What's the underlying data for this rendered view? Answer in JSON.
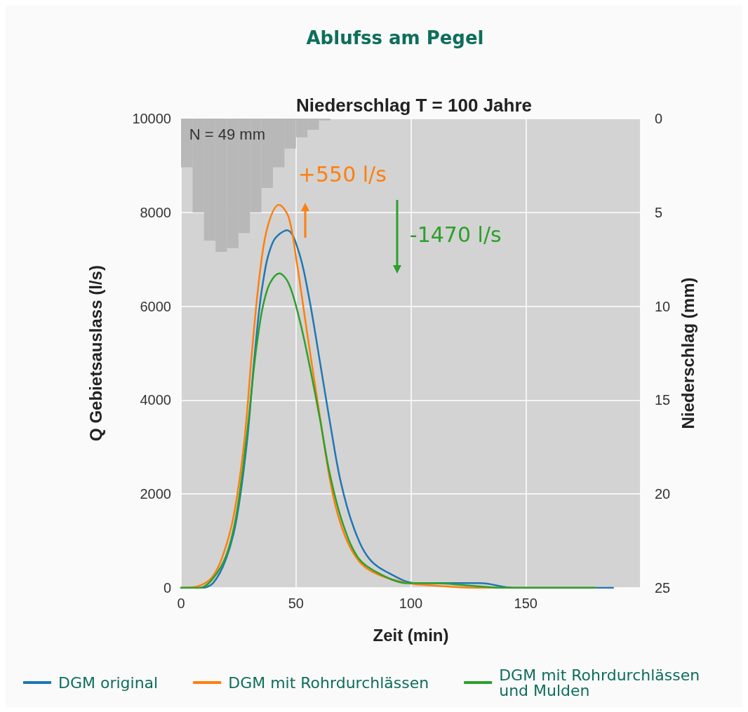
{
  "chart_data": {
    "type": "line",
    "title": "Ablufss am Pegel",
    "subtitle": "Niederschlag T = 100 Jahre",
    "xlabel": "Zeit (min)",
    "ylabel": "Q Gebietsauslass (l/s)",
    "y2label": "Niederschlag (mm)",
    "xlim": [
      0,
      200
    ],
    "xticks": [
      0,
      50,
      100,
      150
    ],
    "ylim": [
      0,
      10000
    ],
    "yticks": [
      0,
      2000,
      4000,
      6000,
      8000,
      10000
    ],
    "y2lim": [
      25,
      0
    ],
    "y2ticks": [
      0,
      5,
      10,
      15,
      20,
      25
    ],
    "grid": true,
    "legend": "bottom",
    "line_style": "solid",
    "marker": "none",
    "annotations": [
      "+550 l/s",
      "-1470 l/s",
      "N = 49 mm"
    ],
    "series": [
      {
        "type": "bar",
        "axis": "y2",
        "color": "#b8b8b8",
        "x": [
          2.5,
          7.5,
          12.5,
          17.5,
          22.5,
          27.5,
          32.5,
          37.5,
          42.5,
          47.5,
          52.5,
          57.5,
          62.5
        ],
        "values": [
          2.6,
          5.0,
          6.5,
          7.1,
          6.9,
          6.1,
          5.0,
          3.7,
          2.6,
          1.6,
          1.0,
          0.6,
          0.1
        ]
      },
      {
        "name": "DGM original",
        "color": "#1f77b4",
        "x": [
          0,
          8.3,
          13.9,
          19.6,
          24.1,
          28.7,
          32,
          35.4,
          40,
          46.2,
          51.3,
          55.8,
          60.4,
          64.9,
          69.4,
          75.1,
          81.9,
          91,
          102.3,
          110,
          120,
          130,
          145,
          160,
          188
        ],
        "values": [
          0,
          0,
          100,
          620,
          1450,
          3110,
          4940,
          6430,
          7370,
          7620,
          7150,
          6160,
          4830,
          3500,
          2280,
          1290,
          620,
          300,
          100,
          100,
          100,
          100,
          0,
          0,
          0
        ]
      },
      {
        "name": "DGM mit Rohrdurchlässen",
        "color": "#ff7f0e",
        "x": [
          0,
          8.3,
          13.9,
          18.5,
          23,
          27.5,
          30.9,
          34.3,
          37.7,
          42.6,
          46.8,
          50.2,
          54.7,
          60.4,
          66,
          71.7,
          78.5,
          87.5,
          98.8,
          110,
          130,
          150,
          180
        ],
        "values": [
          0,
          50,
          250,
          730,
          1560,
          3110,
          5050,
          6710,
          7700,
          8160,
          7900,
          6990,
          5490,
          3660,
          2000,
          1060,
          510,
          250,
          100,
          50,
          0,
          0,
          0
        ]
      },
      {
        "name": "DGM mit Rohrdurchlässen und Mulden",
        "color": "#2ca02c",
        "x": [
          0,
          8.3,
          13.9,
          19.6,
          24.1,
          28.7,
          33.2,
          37.7,
          42.8,
          46.8,
          51.3,
          55.8,
          60.4,
          64.9,
          70.6,
          77.4,
          86.4,
          98.8,
          110,
          125,
          140,
          160,
          180
        ],
        "values": [
          0,
          0,
          200,
          680,
          1560,
          3280,
          5270,
          6380,
          6700,
          6490,
          5770,
          4770,
          3610,
          2390,
          1340,
          620,
          300,
          100,
          100,
          50,
          0,
          0,
          0
        ]
      }
    ]
  }
}
